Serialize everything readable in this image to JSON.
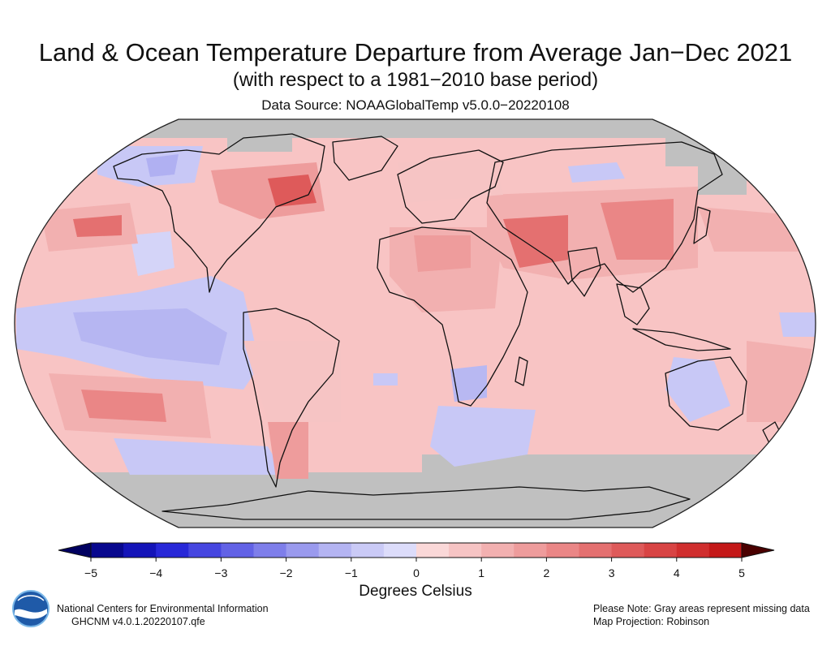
{
  "header": {
    "title": "Land & Ocean Temperature Departure from Average Jan−Dec 2021",
    "subtitle": "(with respect to a 1981−2010 base period)",
    "source": "Data Source: NOAAGlobalTemp v5.0.0−20220108"
  },
  "map": {
    "projection_note": "Map Projection: Robinson",
    "missing_color": "#c0c0c0",
    "ocean_default": "#f8c4c4"
  },
  "legend": {
    "ticks": [
      "−5",
      "−4",
      "−3",
      "−2",
      "−1",
      "0",
      "1",
      "2",
      "3",
      "4",
      "5"
    ],
    "units": "Degrees Celsius",
    "colors": [
      "#08088e",
      "#1414b8",
      "#2828d8",
      "#4646e0",
      "#6262e6",
      "#7e7eea",
      "#9a9aee",
      "#b4b4f2",
      "#cacaf6",
      "#dcdcfa",
      "#fad8d8",
      "#f6c4c4",
      "#f2b0b0",
      "#ee9c9c",
      "#ea8686",
      "#e47070",
      "#de5a5a",
      "#d84444",
      "#d02e2e",
      "#c41818"
    ],
    "under_color": "#000060",
    "over_color": "#4a0000"
  },
  "footer": {
    "org_line1": "National Centers for Environmental Information",
    "org_line2": "GHCNM v4.0.1.20220107.qfe",
    "note_line1": "Please Note: Gray areas represent missing data",
    "note_line2": "Map Projection: Robinson",
    "logo_text": "NOAA"
  }
}
